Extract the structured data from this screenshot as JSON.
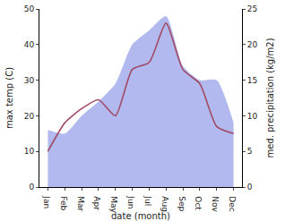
{
  "chart_data": {
    "type": "line",
    "x_label": "date (month)",
    "y_label": "max temp (C)",
    "y2_label": "med. precipitation (kg/m2)",
    "categories": [
      "Jan",
      "Feb",
      "Mar",
      "Apr",
      "May",
      "Jun",
      "Jul",
      "Aug",
      "Sep",
      "Oct",
      "Nov",
      "Dec"
    ],
    "series": [
      {
        "name": "max temp",
        "type": "line",
        "color": "#a24a66",
        "values": [
          10,
          18,
          22,
          24.5,
          20,
          33,
          35,
          46,
          33,
          29,
          17,
          15
        ]
      },
      {
        "name": "med. precipitation",
        "type": "area",
        "axis": "y2",
        "color": "#b1b9ef",
        "values": [
          8,
          7.5,
          10,
          12,
          14.5,
          20,
          22,
          24,
          17,
          15,
          15,
          9
        ]
      }
    ],
    "ylim": [
      0,
      50
    ],
    "yticks": [
      0,
      10,
      20,
      30,
      40,
      50
    ],
    "y2lim": [
      0,
      25
    ],
    "y2ticks": [
      0,
      5,
      10,
      15,
      20,
      25
    ],
    "grid": false
  }
}
